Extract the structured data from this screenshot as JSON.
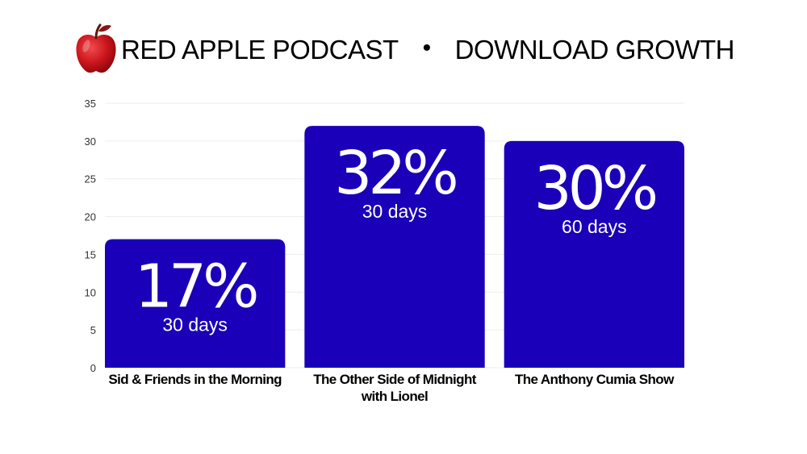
{
  "header": {
    "brand": "RED APPLE PODCAST",
    "separator": "•",
    "subtitle": "DOWNLOAD GROWTH",
    "logo_icon": "apple-icon"
  },
  "colors": {
    "bar": "#1a00b8",
    "grid": "#ededed",
    "bar_text": "#ffffff",
    "apple_red": "#c8141b"
  },
  "chart_data": {
    "type": "bar",
    "title": "RED APPLE PODCAST • DOWNLOAD GROWTH",
    "categories": [
      [
        "Sid & Friends in the Morning"
      ],
      [
        "The Other Side of Midnight",
        "with Lionel"
      ],
      [
        "The Anthony Cumia Show"
      ]
    ],
    "values": [
      17,
      32,
      30
    ],
    "value_labels": [
      "17%",
      "32%",
      "30%"
    ],
    "period_labels": [
      "30 days",
      "30 days",
      "60 days"
    ],
    "ylim": [
      0,
      35
    ],
    "yticks": [
      0,
      5,
      10,
      15,
      20,
      25,
      30,
      35
    ],
    "grid": true,
    "legend": "none"
  }
}
